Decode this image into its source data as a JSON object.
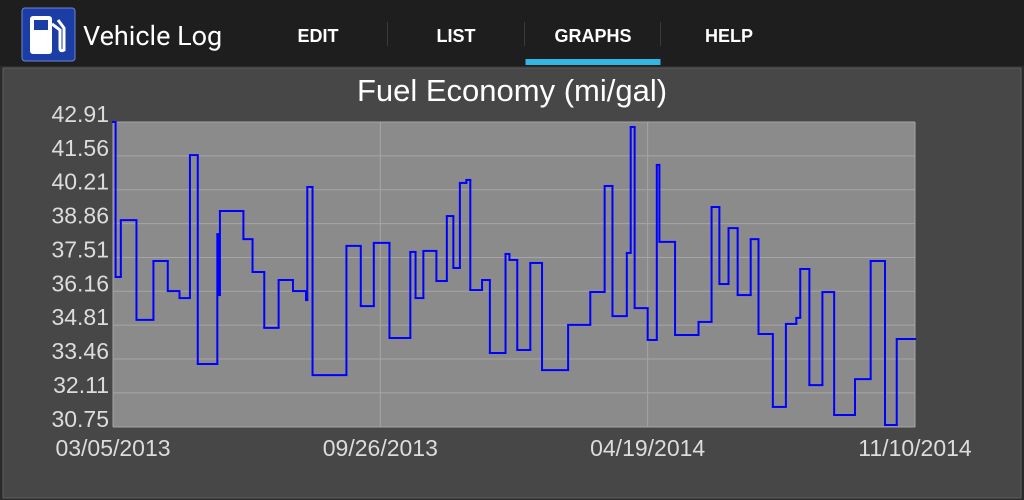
{
  "app_bar": {
    "title": "Vehicle Log",
    "tabs": [
      {
        "label": "EDIT",
        "selected": false
      },
      {
        "label": "LIST",
        "selected": false
      },
      {
        "label": "GRAPHS",
        "selected": true
      },
      {
        "label": "HELP",
        "selected": false
      }
    ]
  },
  "chart_data": {
    "type": "line",
    "step": true,
    "title": "Fuel Economy (mi/gal)",
    "x": [
      "03/05/2013",
      "03/07/2013",
      "03/11/2013",
      "03/23/2013",
      "04/05/2013",
      "04/16/2013",
      "04/25/2013",
      "05/03/2013",
      "05/09/2013",
      "05/24/2013",
      "05/25/2013",
      "05/26/2013",
      "06/13/2013",
      "06/20/2013",
      "06/29/2013",
      "07/10/2013",
      "07/21/2013",
      "07/31/2013",
      "08/01/2013",
      "08/05/2013",
      "08/31/2013",
      "09/11/2013",
      "09/21/2013",
      "10/03/2013",
      "10/19/2013",
      "10/23/2013",
      "10/29/2013",
      "11/08/2013",
      "11/16/2013",
      "11/21/2013",
      "11/26/2013",
      "12/01/2013",
      "12/04/2013",
      "12/13/2013",
      "12/19/2013",
      "12/31/2013",
      "01/03/2014",
      "01/09/2014",
      "01/19/2014",
      "01/28/2014",
      "02/17/2014",
      "03/06/2014",
      "03/17/2014",
      "03/23/2014",
      "04/03/2014",
      "04/06/2014",
      "04/09/2014",
      "04/19/2014",
      "04/26/2014",
      "04/28/2014",
      "05/10/2014",
      "05/28/2014",
      "06/07/2014",
      "06/13/2014",
      "06/20/2014",
      "06/27/2014",
      "07/07/2014",
      "07/13/2014",
      "07/24/2014",
      "08/03/2014",
      "08/11/2014",
      "08/14/2014",
      "08/21/2014",
      "08/31/2014",
      "09/09/2014",
      "09/25/2014",
      "10/07/2014",
      "10/18/2014",
      "10/27/2014"
    ],
    "series": [
      {
        "color": "#0000ff",
        "values": [
          42.91,
          36.73,
          39.0,
          35.02,
          37.37,
          36.17,
          35.89,
          41.59,
          33.26,
          38.44,
          36.01,
          39.36,
          38.24,
          36.93,
          34.7,
          36.61,
          36.17,
          35.81,
          40.32,
          32.82,
          37.97,
          35.57,
          38.09,
          34.3,
          37.73,
          35.89,
          37.77,
          36.57,
          39.16,
          37.09,
          40.48,
          40.6,
          36.21,
          36.61,
          33.7,
          37.65,
          37.41,
          33.82,
          37.29,
          33.02,
          34.82,
          36.13,
          40.36,
          35.17,
          37.69,
          42.71,
          35.49,
          34.22,
          41.2,
          38.13,
          34.42,
          34.94,
          39.52,
          36.45,
          38.68,
          36.01,
          38.24,
          34.46,
          31.55,
          34.86,
          35.1,
          37.05,
          32.42,
          36.13,
          31.23,
          32.66,
          37.37,
          30.83,
          34.26
        ]
      }
    ],
    "xlim": [
      "03/05/2013",
      "11/10/2014"
    ],
    "xticks": [
      "03/05/2013",
      "09/26/2013",
      "04/19/2014",
      "11/10/2014"
    ],
    "ylim": [
      30.75,
      42.91
    ],
    "yticks": [
      30.75,
      32.11,
      33.46,
      34.81,
      36.16,
      37.51,
      38.86,
      40.21,
      41.56,
      42.91
    ],
    "grid": true
  }
}
